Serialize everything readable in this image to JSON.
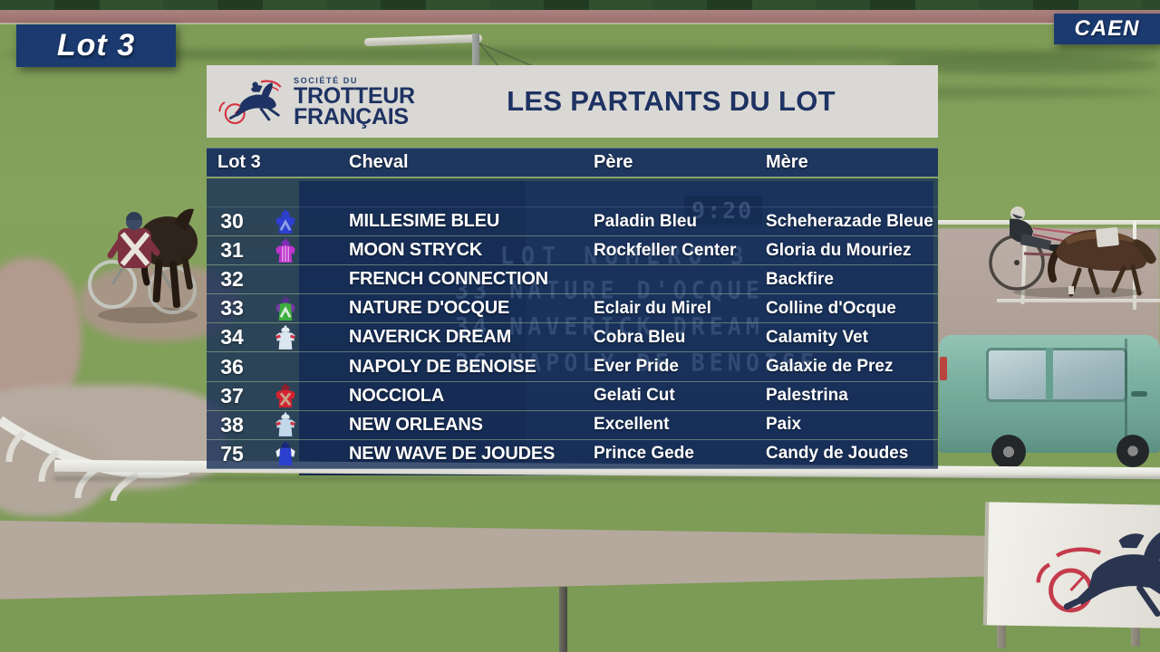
{
  "badges": {
    "lot": "Lot 3",
    "venue": "CAEN"
  },
  "panel": {
    "logo": {
      "line1": "SOCIÉTÉ DU",
      "line2": "TROTTEUR",
      "line3": "FRANÇAIS"
    },
    "title": "LES PARTANTS DU LOT",
    "table": {
      "columns": {
        "num": "Lot 3",
        "cheval": "Cheval",
        "pere": "Père",
        "mere": "Mère"
      },
      "rows": [
        {
          "num": "30",
          "cheval": "MILLESIME BLEU",
          "pere": "Paladin Bleu",
          "mere": "Scheherazade Bleue",
          "silk": {
            "present": true,
            "cap": "#2d3fd0",
            "body": "#2d3fd0",
            "sleeve": "#2d3fd0",
            "pattern": "chevron",
            "patternColor": "#8fa0e8"
          }
        },
        {
          "num": "31",
          "cheval": "MOON STRYCK",
          "pere": "Rockfeller Center",
          "mere": "Gloria du Mouriez",
          "silk": {
            "present": true,
            "cap": "#7c2bb8",
            "body": "#bd34cc",
            "sleeve": "#bd34cc",
            "pattern": "stripes",
            "patternColor": "#e2a0e9"
          }
        },
        {
          "num": "32",
          "cheval": "FRENCH CONNECTION",
          "pere": "",
          "mere": "Backfire",
          "silk": {
            "present": false
          }
        },
        {
          "num": "33",
          "cheval": "NATURE D'OCQUE",
          "pere": "Eclair du Mirel",
          "mere": "Colline d'Ocque",
          "silk": {
            "present": true,
            "cap": "#5b2d91",
            "body": "#3dae3d",
            "sleeve": "#7a35a8",
            "pattern": "chevron",
            "patternColor": "#d9ecd9"
          }
        },
        {
          "num": "34",
          "cheval": "NAVERICK DREAM",
          "pere": "Cobra Bleu",
          "mere": "Calamity Vet",
          "silk": {
            "present": true,
            "cap": "#e3ecf4",
            "body": "#dbe7f0",
            "sleeve": "#dbe7f0",
            "pattern": "armband",
            "patternColor": "#d5303f"
          }
        },
        {
          "num": "36",
          "cheval": "NAPOLY DE BENOISE",
          "pere": "Ever Pride",
          "mere": "Galaxie de Prez",
          "silk": {
            "present": false
          }
        },
        {
          "num": "37",
          "cheval": "NOCCIOLA",
          "pere": "Gelati Cut",
          "mere": "Palestrina",
          "silk": {
            "present": true,
            "cap": "#8c1f28",
            "body": "#d5222f",
            "sleeve": "#d5222f",
            "pattern": "cross",
            "patternColor": "#c9a188"
          }
        },
        {
          "num": "38",
          "cheval": "NEW ORLEANS",
          "pere": "Excellent",
          "mere": "Paix",
          "silk": {
            "present": true,
            "cap": "#dbe7f0",
            "body": "#c3d8ea",
            "sleeve": "#c3d8ea",
            "pattern": "armband",
            "patternColor": "#d5303f"
          }
        },
        {
          "num": "75",
          "cheval": "NEW WAVE DE JOUDES",
          "pere": "Prince Gede",
          "mere": "Candy de Joudes",
          "silk": {
            "present": true,
            "cap": "#18277f",
            "body": "#2b3fd0",
            "sleeve": "#eef1f8",
            "pattern": "plain",
            "patternColor": "#eef1f8"
          }
        }
      ]
    }
  },
  "background": {
    "scoreboard": {
      "clock": "9:20",
      "lines": [
        "LOT NUMERO 3",
        "33 NATURE D'OCQUE",
        "34 NAVERICK DREAM",
        "36 NAPOLY DE BENOISE"
      ]
    }
  },
  "colors": {
    "badgeNavy": "#1b3a70",
    "titleNavy": "#1e3263",
    "headerGray": "#d9d8d4",
    "rowBlue": "rgba(22,45,86,0.8)",
    "accentRed": "#d5303f",
    "grassGreen": "#86a35e",
    "vanTeal": "#7ab09f"
  }
}
